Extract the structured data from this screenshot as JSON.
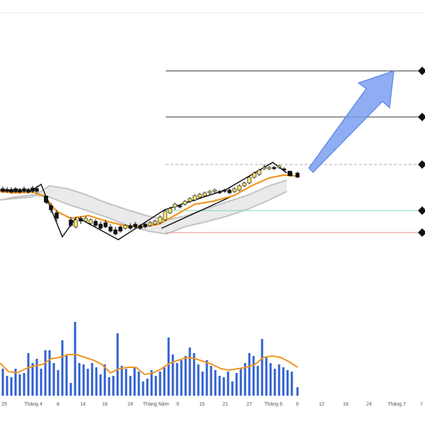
{
  "chart_data": {
    "type": "candlestick",
    "x_tick_labels": [
      "25",
      "Tháng 4",
      "8",
      "14",
      "18",
      "24",
      "Tháng Năm",
      "9",
      "15",
      "21",
      "27",
      "Tháng 6",
      "6",
      "12",
      "18",
      "24",
      "Tháng 7",
      "7"
    ],
    "levels": [
      {
        "name": "target_2",
        "color": "#333333",
        "style": "solid"
      },
      {
        "name": "target_1",
        "color": "#333333",
        "style": "solid"
      },
      {
        "name": "entry",
        "color": "#aaaaaa",
        "style": "dashed"
      },
      {
        "name": "support",
        "color": "#7fd6c2",
        "style": "solid"
      },
      {
        "name": "stop",
        "color": "#e88b8b",
        "style": "solid"
      }
    ],
    "colors": {
      "up_candle": "#f5e06a",
      "down_candle": "#111111",
      "ma_line": "#f0961e",
      "band_fill": "#d9d9d9",
      "volume_bar": "#2f5fd0",
      "arrow": "#7a9ff0"
    },
    "note": "Price axis and values are not printed in the image; only date ticks are shown."
  }
}
